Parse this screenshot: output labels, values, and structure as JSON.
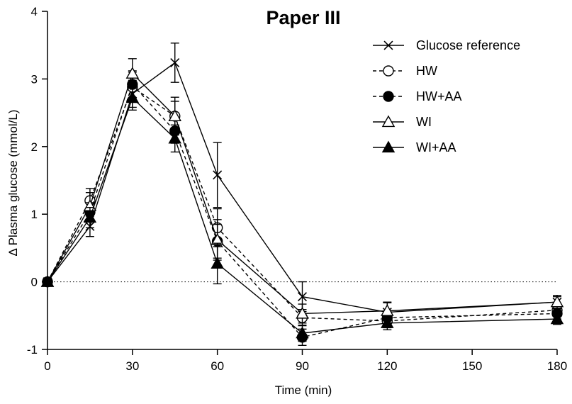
{
  "chart_data": {
    "type": "line",
    "title": "Paper III",
    "xlabel": "Time (min)",
    "ylabel": "Δ Plasma glucose (mmol/L)",
    "xlim": [
      0,
      180
    ],
    "ylim": [
      -1,
      4
    ],
    "x_ticks": [
      0,
      30,
      60,
      90,
      120,
      150,
      180
    ],
    "y_ticks": [
      -1,
      0,
      1,
      2,
      3,
      4
    ],
    "x_tick_labels": [
      "0",
      "30",
      "60",
      "90",
      "120",
      "150",
      "180"
    ],
    "y_tick_labels": [
      "-1",
      "0",
      "1",
      "2",
      "3",
      "4"
    ],
    "grid": false,
    "reference_line": {
      "y": 0,
      "style": "dotted"
    },
    "legend_position": "top-right",
    "series": [
      {
        "name": "Glucose reference",
        "marker": "x",
        "line": "solid",
        "fill": "none",
        "x": [
          0,
          15,
          30,
          45,
          60,
          90,
          120,
          180
        ],
        "y": [
          0,
          0.82,
          2.78,
          3.24,
          1.58,
          -0.22,
          -0.45,
          -0.3
        ],
        "err": [
          0,
          0.15,
          0.2,
          0.29,
          0.48,
          0.22,
          0.15,
          0.08
        ]
      },
      {
        "name": "HW",
        "marker": "circle",
        "line": "dashed",
        "fill": "open",
        "x": [
          0,
          15,
          30,
          45,
          60,
          90,
          120,
          180
        ],
        "y": [
          0,
          1.2,
          2.88,
          2.45,
          0.8,
          -0.53,
          -0.58,
          -0.42
        ],
        "err": [
          0,
          0.18,
          0.22,
          0.22,
          0.28,
          0.12,
          0.1,
          0.08
        ]
      },
      {
        "name": "HW+AA",
        "marker": "circle",
        "line": "dashed",
        "fill": "filled",
        "x": [
          0,
          15,
          30,
          45,
          60,
          90,
          120,
          180
        ],
        "y": [
          0,
          1.03,
          2.92,
          2.23,
          0.6,
          -0.82,
          -0.53,
          -0.47
        ],
        "err": [
          0,
          0.14,
          0.2,
          0.18,
          0.25,
          0.12,
          0.1,
          0.08
        ]
      },
      {
        "name": "WI",
        "marker": "triangle",
        "line": "solid",
        "fill": "open",
        "x": [
          0,
          15,
          30,
          45,
          60,
          90,
          120,
          180
        ],
        "y": [
          0,
          1.12,
          3.08,
          2.45,
          0.62,
          -0.47,
          -0.43,
          -0.3
        ],
        "err": [
          0,
          0.2,
          0.22,
          0.28,
          0.3,
          0.14,
          0.12,
          0.1
        ]
      },
      {
        "name": "WI+AA",
        "marker": "triangle",
        "line": "solid",
        "fill": "filled",
        "x": [
          0,
          15,
          30,
          45,
          60,
          90,
          120,
          180
        ],
        "y": [
          0,
          0.95,
          2.72,
          2.12,
          0.27,
          -0.76,
          -0.61,
          -0.55
        ],
        "err": [
          0,
          0.15,
          0.18,
          0.2,
          0.3,
          0.12,
          0.1,
          0.08
        ]
      }
    ]
  }
}
